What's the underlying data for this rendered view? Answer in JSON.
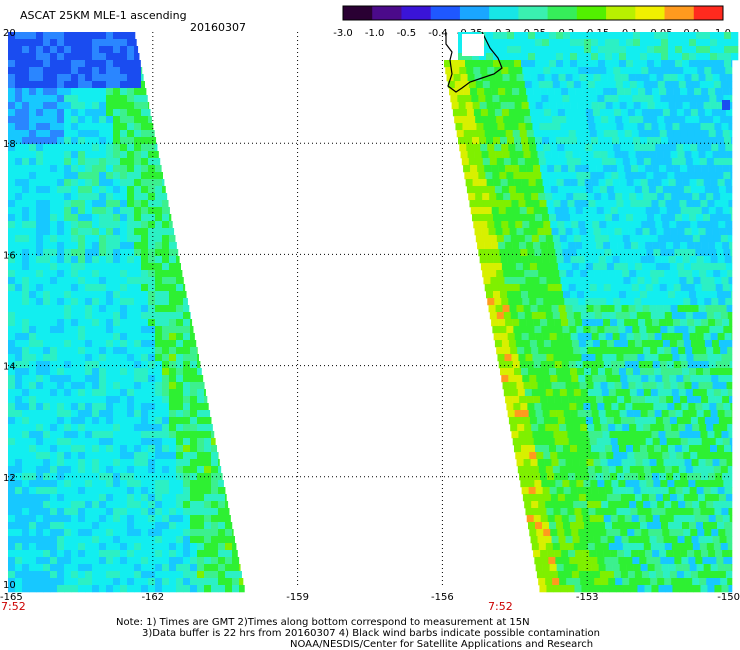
{
  "header": {
    "title": "ASCAT 25KM MLE-1 ascending",
    "date": "20160307"
  },
  "colorbar": {
    "tick_labels": [
      "-3.0",
      "-1.0",
      "-0.5",
      "-0.4",
      "-0.35",
      "-0.3",
      "-0.25",
      "-0.2",
      "-0.15",
      "-0.1",
      "-0.05",
      "0.0",
      "1.0"
    ],
    "colors": [
      "#2a0033",
      "#4b0a8a",
      "#3a14d8",
      "#1f58ff",
      "#1aa6ff",
      "#17e6e6",
      "#3af0b0",
      "#36ee5a",
      "#52f000",
      "#b8f000",
      "#f0f000",
      "#ff9a1e",
      "#ff2a1e"
    ]
  },
  "chart_data": {
    "type": "heatmap",
    "title": "ASCAT 25KM MLE-1 ascending",
    "date": "20160307",
    "variable": "MLE",
    "x_range": [
      -165,
      -150
    ],
    "y_range": [
      10,
      20
    ],
    "x_ticks": [
      "-165",
      "-162",
      "-159",
      "-156",
      "-153",
      "-150"
    ],
    "y_ticks": [
      "20",
      "18",
      "16",
      "14",
      "12",
      "10"
    ],
    "grid": true,
    "colorbar_placement": "top-right",
    "swaths": [
      {
        "name": "west swath",
        "time_label": "7:52",
        "lon_at_15N": [
          -165,
          -161.3
        ],
        "dominant_values": [
          -0.3,
          -0.2,
          -0.15
        ]
      },
      {
        "name": "east swath",
        "time_label": "7:52",
        "lon_at_15N": [
          -154.7,
          -150
        ],
        "dominant_values": [
          -0.3,
          -0.2,
          -0.15,
          -0.1
        ]
      }
    ],
    "coastline": "Hawaii (Big Island), top of east swath"
  },
  "footer": {
    "time_labels": [
      "7:52",
      "7:52"
    ],
    "note_line1": "Note: 1) Times are GMT 2)Times along bottom correspond to measurement at 15N",
    "note_line2": "3)Data buffer is 22 hrs from 20160307 4) Black wind barbs indicate possible contamination",
    "note_line3": "NOAA/NESDIS/Center for Satellite Applications and Research"
  }
}
